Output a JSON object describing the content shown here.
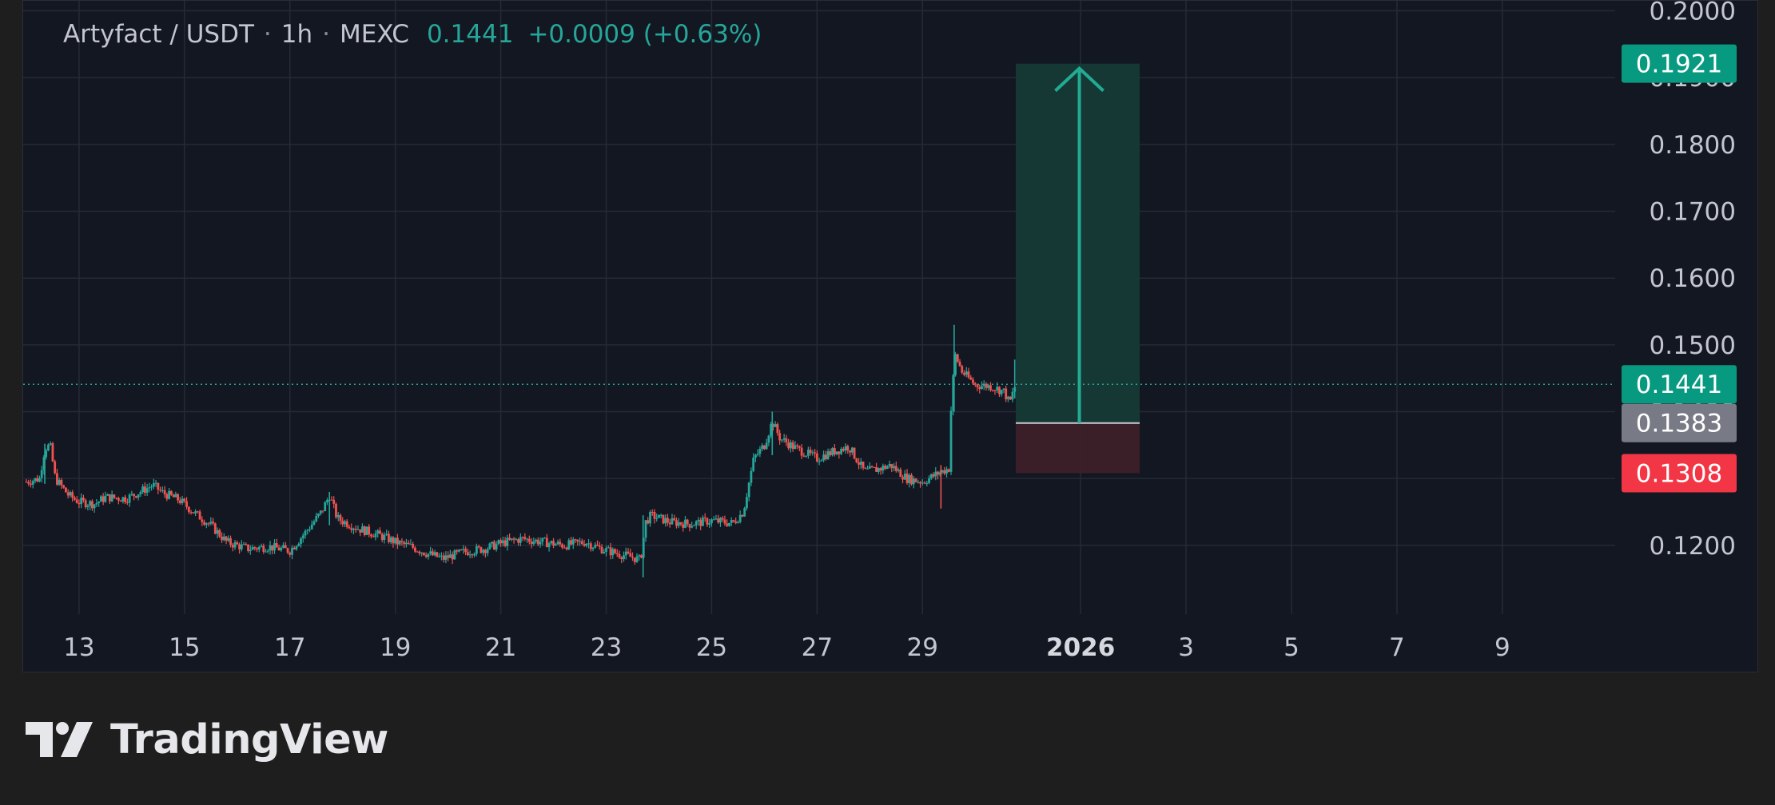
{
  "header": {
    "symbol": "Artyfact / USDT",
    "interval": "1h",
    "exchange": "MEXC",
    "separator": "·",
    "last_price": "0.1441",
    "change": "+0.0009 (+0.63%)"
  },
  "brand": {
    "name": "TradingView",
    "logo_icon": "tradingview-logo-icon"
  },
  "colors": {
    "background": "#131722",
    "up": "#26a69a",
    "down": "#ef5350",
    "target_zone": "#163a36",
    "stop_zone": "#3d2029",
    "stop_pill": "#f23645",
    "entry_pill": "#787b86",
    "target_pill": "#089981"
  },
  "chart_data": {
    "type": "candlestick",
    "title": "Artyfact / USDT · 1h · MEXC",
    "xlabel": "",
    "ylabel": "",
    "ylim": [
      0.1097,
      0.2015
    ],
    "grid": true,
    "y_ticks": [
      "0.2000",
      "0.1900",
      "0.1800",
      "0.1700",
      "0.1600",
      "0.1500",
      "0.1400",
      "0.1300",
      "0.1200"
    ],
    "x_ticks": [
      {
        "day": 13,
        "label": "13"
      },
      {
        "day": 15,
        "label": "15"
      },
      {
        "day": 17,
        "label": "17"
      },
      {
        "day": 19,
        "label": "19"
      },
      {
        "day": 21,
        "label": "21"
      },
      {
        "day": 23,
        "label": "23"
      },
      {
        "day": 25,
        "label": "25"
      },
      {
        "day": 27,
        "label": "27"
      },
      {
        "day": 29,
        "label": "29"
      },
      {
        "day": 32,
        "label": "2026",
        "bold": true
      },
      {
        "day": 34,
        "label": "3"
      },
      {
        "day": 36,
        "label": "5"
      },
      {
        "day": 38,
        "label": "7"
      },
      {
        "day": 40,
        "label": "9"
      }
    ],
    "x_domain_days": [
      11.94,
      42.14
    ],
    "price_path": [
      [
        12.0,
        0.1295
      ],
      [
        12.25,
        0.13
      ],
      [
        12.35,
        0.1345
      ],
      [
        12.45,
        0.135
      ],
      [
        12.55,
        0.13
      ],
      [
        12.8,
        0.1275
      ],
      [
        13.0,
        0.1265
      ],
      [
        13.3,
        0.1262
      ],
      [
        13.5,
        0.1272
      ],
      [
        13.9,
        0.127
      ],
      [
        14.2,
        0.1282
      ],
      [
        14.4,
        0.129
      ],
      [
        14.6,
        0.1278
      ],
      [
        14.9,
        0.1268
      ],
      [
        15.2,
        0.1248
      ],
      [
        15.5,
        0.123
      ],
      [
        15.8,
        0.1205
      ],
      [
        16.2,
        0.1195
      ],
      [
        16.6,
        0.1198
      ],
      [
        17.0,
        0.1192
      ],
      [
        17.3,
        0.122
      ],
      [
        17.6,
        0.125
      ],
      [
        17.75,
        0.1275
      ],
      [
        17.9,
        0.124
      ],
      [
        18.3,
        0.1225
      ],
      [
        18.7,
        0.1215
      ],
      [
        19.0,
        0.1205
      ],
      [
        19.3,
        0.1198
      ],
      [
        19.6,
        0.1188
      ],
      [
        19.9,
        0.118
      ],
      [
        20.3,
        0.119
      ],
      [
        20.7,
        0.1195
      ],
      [
        21.0,
        0.1203
      ],
      [
        21.4,
        0.121
      ],
      [
        21.8,
        0.1205
      ],
      [
        22.2,
        0.12
      ],
      [
        22.6,
        0.1205
      ],
      [
        22.9,
        0.1195
      ],
      [
        23.2,
        0.1188
      ],
      [
        23.5,
        0.1182
      ],
      [
        23.65,
        0.1178
      ],
      [
        23.75,
        0.1235
      ],
      [
        23.85,
        0.1245
      ],
      [
        24.2,
        0.1235
      ],
      [
        24.6,
        0.1232
      ],
      [
        25.0,
        0.1237
      ],
      [
        25.4,
        0.1233
      ],
      [
        25.6,
        0.125
      ],
      [
        25.8,
        0.133
      ],
      [
        26.0,
        0.135
      ],
      [
        26.15,
        0.1385
      ],
      [
        26.3,
        0.136
      ],
      [
        26.6,
        0.1345
      ],
      [
        27.0,
        0.133
      ],
      [
        27.3,
        0.134
      ],
      [
        27.6,
        0.1348
      ],
      [
        27.9,
        0.131
      ],
      [
        28.2,
        0.1315
      ],
      [
        28.4,
        0.132
      ],
      [
        28.7,
        0.13
      ],
      [
        29.0,
        0.1295
      ],
      [
        29.35,
        0.131
      ],
      [
        29.5,
        0.1315
      ],
      [
        29.55,
        0.142
      ],
      [
        29.62,
        0.1485
      ],
      [
        29.75,
        0.146
      ],
      [
        30.0,
        0.144
      ],
      [
        30.3,
        0.1438
      ],
      [
        30.55,
        0.143
      ],
      [
        30.65,
        0.1412
      ],
      [
        30.72,
        0.143
      ],
      [
        30.77,
        0.1441
      ]
    ],
    "last_price": 0.1441
  },
  "position_tool": {
    "type": "long_position",
    "target_price": "0.1921",
    "entry_price": "0.1383",
    "stop_price": "0.1308",
    "target_value": 0.1921,
    "entry_value": 0.1383,
    "stop_value": 0.1308,
    "start_day": 30.77,
    "end_day": 33.12,
    "arrow_icon": "up-arrow-icon"
  },
  "axis_labels": {
    "last_price": "0.1441"
  }
}
